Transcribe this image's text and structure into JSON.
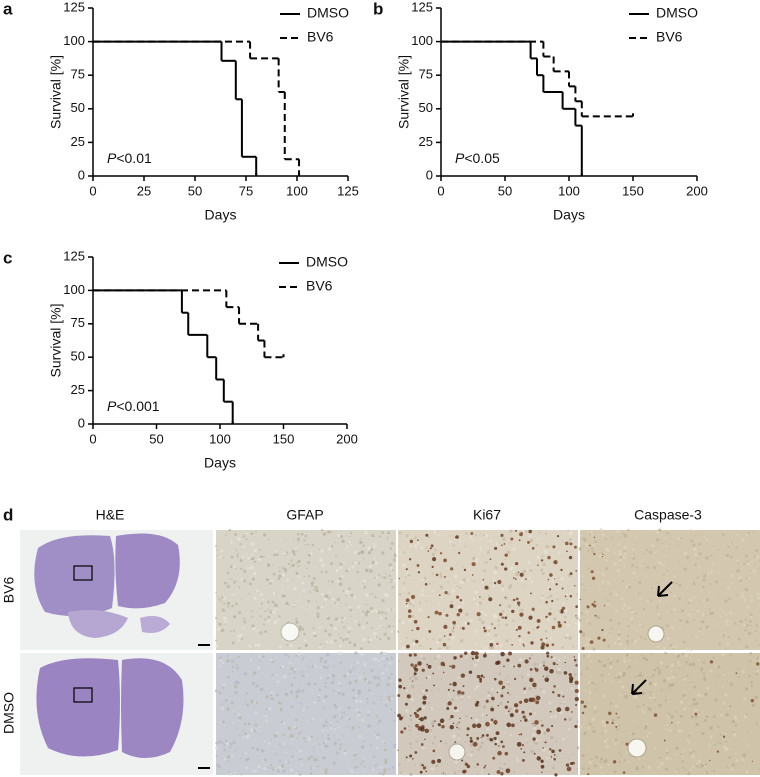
{
  "chart_data": [
    {
      "type": "step",
      "label": "a",
      "xlabel": "Days",
      "ylabel": "Survival [%]",
      "xlim": [
        0,
        125
      ],
      "xticks": [
        0,
        25,
        50,
        75,
        100,
        125
      ],
      "ylim": [
        0,
        125
      ],
      "yticks": [
        0,
        25,
        50,
        75,
        100,
        125
      ],
      "annotation": [
        "P",
        "<0.01"
      ],
      "legend": "upper right",
      "series": [
        {
          "name": "DMSO",
          "color": "#000000",
          "linestyle": "solid",
          "x": [
            0,
            63,
            70,
            73,
            80
          ],
          "values": [
            100,
            85.7,
            57.1,
            14.3,
            0
          ]
        },
        {
          "name": "BV6",
          "color": "#000000",
          "linestyle": "dashed",
          "x": [
            0,
            77,
            91,
            94,
            101
          ],
          "values": [
            100,
            87.5,
            62.5,
            12.5,
            0
          ]
        }
      ]
    },
    {
      "type": "step",
      "label": "b",
      "xlabel": "Days",
      "ylabel": "Survival [%]",
      "xlim": [
        0,
        200
      ],
      "xticks": [
        0,
        50,
        100,
        150,
        200
      ],
      "ylim": [
        0,
        125
      ],
      "yticks": [
        0,
        25,
        50,
        75,
        100,
        125
      ],
      "annotation": [
        "P",
        "<0.05"
      ],
      "legend": "upper right",
      "series": [
        {
          "name": "DMSO",
          "color": "#000000",
          "linestyle": "solid",
          "x": [
            0,
            70,
            75,
            80,
            95,
            105,
            110
          ],
          "values": [
            100,
            87.5,
            75,
            62.5,
            50,
            37.5,
            0
          ]
        },
        {
          "name": "BV6",
          "color": "#000000",
          "linestyle": "dashed",
          "x": [
            0,
            80,
            88,
            100,
            105,
            110,
            150
          ],
          "values": [
            100,
            88.9,
            77.8,
            66.7,
            55.6,
            44.4,
            44.4
          ]
        }
      ]
    },
    {
      "type": "step",
      "label": "c",
      "xlabel": "Days",
      "ylabel": "Survival [%]",
      "xlim": [
        0,
        200
      ],
      "xticks": [
        0,
        50,
        100,
        150,
        200
      ],
      "ylim": [
        0,
        125
      ],
      "yticks": [
        0,
        25,
        50,
        75,
        100,
        125
      ],
      "annotation": [
        "P",
        "<0.001"
      ],
      "legend": "upper right",
      "series": [
        {
          "name": "DMSO",
          "color": "#000000",
          "linestyle": "solid",
          "x": [
            0,
            70,
            75,
            90,
            97,
            103,
            110
          ],
          "values": [
            100,
            83.3,
            66.7,
            50,
            33.3,
            16.7,
            0
          ]
        },
        {
          "name": "BV6",
          "color": "#000000",
          "linestyle": "dashed",
          "x": [
            0,
            105,
            115,
            130,
            135,
            150
          ],
          "values": [
            100,
            87.5,
            75,
            62.5,
            50,
            50
          ]
        }
      ]
    }
  ],
  "panel_d": {
    "label": "d",
    "columns": [
      "H&E",
      "GFAP",
      "Ki67",
      "Caspase-3"
    ],
    "rows": [
      "BV6",
      "DMSO"
    ]
  }
}
